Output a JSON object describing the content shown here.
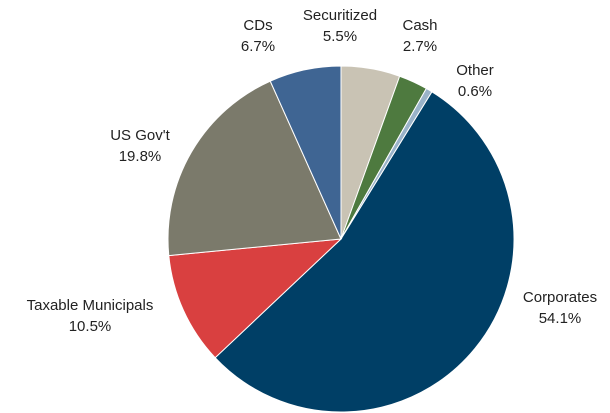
{
  "chart_data": {
    "type": "pie",
    "categories": [
      "Securitized",
      "Cash",
      "Other",
      "Corporates",
      "Taxable Municipals",
      "US Gov't",
      "CDs"
    ],
    "values": [
      5.5,
      2.7,
      0.6,
      54.1,
      10.5,
      19.8,
      6.7
    ],
    "value_labels": [
      "5.5%",
      "2.7%",
      "0.6%",
      "54.1%",
      "10.5%",
      "19.8%",
      "6.7%"
    ],
    "colors": [
      "#c9c3b4",
      "#4e7a3f",
      "#9ab3c9",
      "#003f66",
      "#d94040",
      "#7b7a6b",
      "#3f6593"
    ]
  }
}
